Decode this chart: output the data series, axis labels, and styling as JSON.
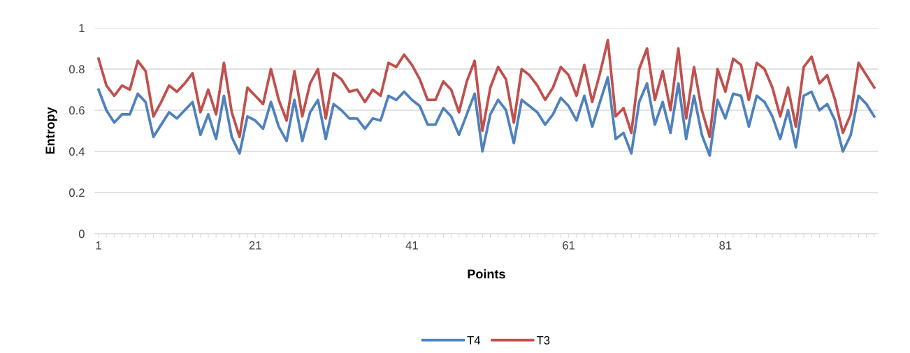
{
  "chart_data": {
    "type": "line",
    "xlabel": "Points",
    "ylabel": "Entropy",
    "categories": [
      "1",
      null,
      null,
      null,
      null,
      null,
      null,
      null,
      null,
      null,
      null,
      null,
      null,
      null,
      null,
      null,
      null,
      null,
      null,
      null,
      "21",
      null,
      null,
      null,
      null,
      null,
      null,
      null,
      null,
      null,
      null,
      null,
      null,
      null,
      null,
      null,
      null,
      null,
      null,
      null,
      "41",
      null,
      null,
      null,
      null,
      null,
      null,
      null,
      null,
      null,
      null,
      null,
      null,
      null,
      null,
      null,
      null,
      null,
      null,
      null,
      "61",
      null,
      null,
      null,
      null,
      null,
      null,
      null,
      null,
      null,
      null,
      null,
      null,
      null,
      null,
      null,
      null,
      null,
      null,
      null,
      "81",
      null,
      null,
      null,
      null,
      null,
      null,
      null,
      null,
      null,
      null,
      null,
      null,
      null,
      null,
      null,
      null,
      null,
      null,
      null
    ],
    "series": [
      {
        "name": "T4",
        "color": "#4f81bd",
        "values": [
          0.7,
          0.6,
          0.54,
          0.58,
          0.58,
          0.68,
          0.64,
          0.47,
          0.53,
          0.59,
          0.56,
          0.6,
          0.64,
          0.48,
          0.58,
          0.46,
          0.67,
          0.47,
          0.39,
          0.57,
          0.55,
          0.51,
          0.64,
          0.52,
          0.45,
          0.65,
          0.45,
          0.59,
          0.65,
          0.46,
          0.63,
          0.6,
          0.56,
          0.56,
          0.51,
          0.56,
          0.55,
          0.67,
          0.65,
          0.69,
          0.65,
          0.62,
          0.53,
          0.53,
          0.61,
          0.57,
          0.48,
          0.58,
          0.68,
          0.4,
          0.58,
          0.65,
          0.6,
          0.44,
          0.65,
          0.62,
          0.59,
          0.53,
          0.58,
          0.66,
          0.62,
          0.55,
          0.67,
          0.52,
          0.64,
          0.76,
          0.46,
          0.49,
          0.39,
          0.64,
          0.73,
          0.53,
          0.64,
          0.49,
          0.73,
          0.46,
          0.67,
          0.48,
          0.38,
          0.65,
          0.56,
          0.68,
          0.67,
          0.52,
          0.67,
          0.64,
          0.57,
          0.46,
          0.6,
          0.42,
          0.67,
          0.69,
          0.6,
          0.63,
          0.55,
          0.4,
          0.48,
          0.67,
          0.63,
          0.57
        ]
      },
      {
        "name": "T3",
        "color": "#c0504d",
        "values": [
          0.85,
          0.72,
          0.67,
          0.72,
          0.7,
          0.84,
          0.79,
          0.57,
          0.64,
          0.72,
          0.69,
          0.73,
          0.78,
          0.59,
          0.7,
          0.58,
          0.83,
          0.59,
          0.47,
          0.71,
          0.67,
          0.63,
          0.8,
          0.65,
          0.55,
          0.79,
          0.57,
          0.73,
          0.8,
          0.56,
          0.78,
          0.75,
          0.69,
          0.7,
          0.64,
          0.7,
          0.67,
          0.83,
          0.81,
          0.87,
          0.82,
          0.75,
          0.65,
          0.65,
          0.74,
          0.7,
          0.59,
          0.74,
          0.84,
          0.5,
          0.71,
          0.81,
          0.75,
          0.54,
          0.8,
          0.77,
          0.72,
          0.65,
          0.71,
          0.81,
          0.77,
          0.67,
          0.82,
          0.64,
          0.78,
          0.94,
          0.57,
          0.61,
          0.49,
          0.8,
          0.9,
          0.65,
          0.79,
          0.6,
          0.9,
          0.56,
          0.81,
          0.6,
          0.47,
          0.8,
          0.69,
          0.85,
          0.82,
          0.65,
          0.83,
          0.8,
          0.71,
          0.57,
          0.71,
          0.52,
          0.81,
          0.86,
          0.73,
          0.77,
          0.65,
          0.49,
          0.58,
          0.83,
          0.77,
          0.71
        ]
      }
    ],
    "ylim": [
      0,
      1
    ],
    "yticks": [
      0,
      0.2,
      0.4,
      0.6,
      0.8,
      1
    ],
    "grid": "y",
    "legend": "bottom",
    "marker": "none",
    "line_style": "solid"
  }
}
